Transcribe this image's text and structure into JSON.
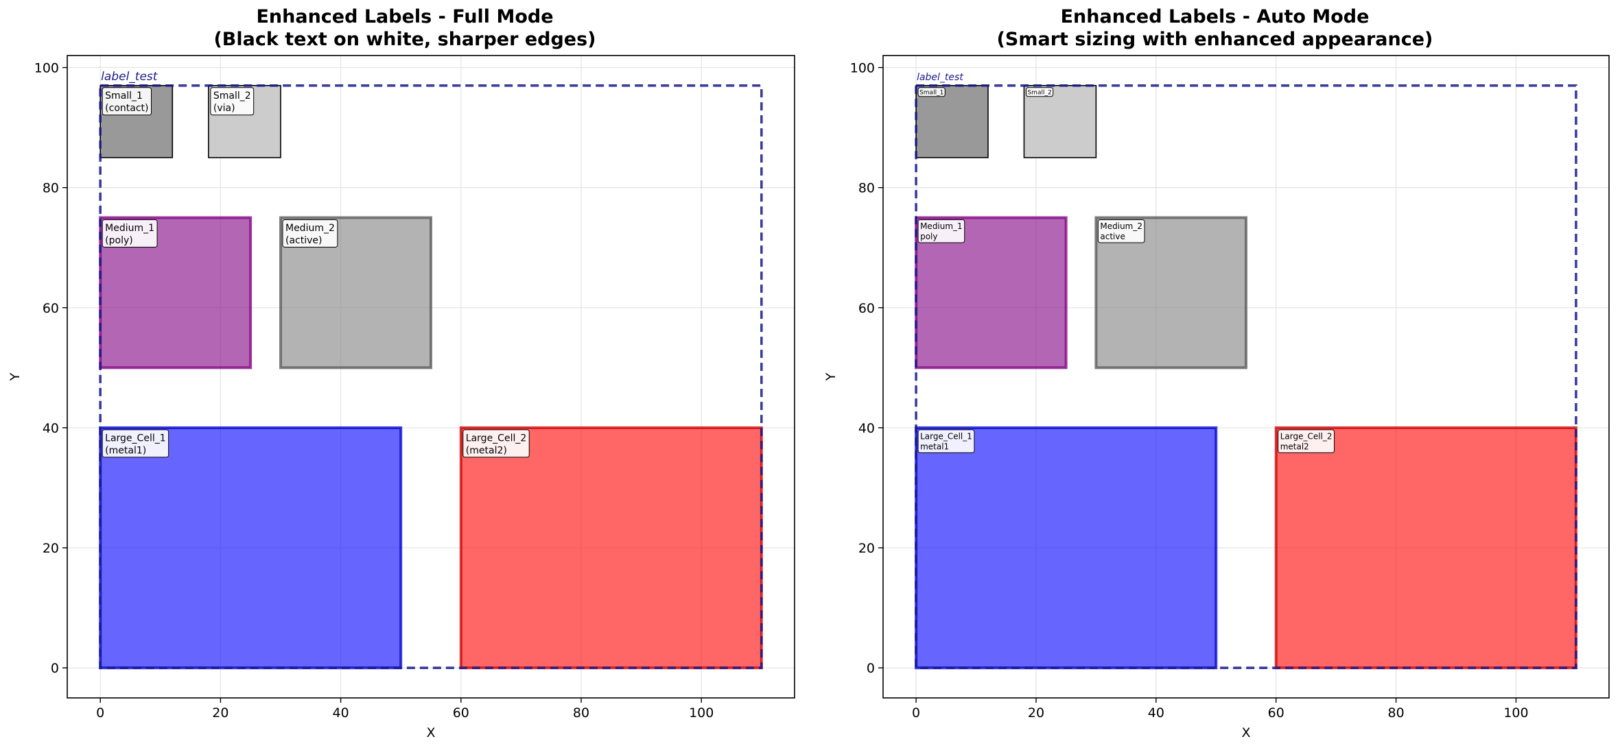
{
  "chart_data": [
    {
      "type": "layout",
      "title_line1": "Enhanced Labels - Full Mode",
      "title_line2": "(Black text on white, sharper edges)",
      "xlabel": "X",
      "ylabel": "Y",
      "xlim": [
        -5.5,
        115.5
      ],
      "ylim": [
        -5,
        102
      ],
      "xticks": [
        0,
        20,
        40,
        60,
        80,
        100
      ],
      "yticks": [
        0,
        20,
        40,
        60,
        80,
        100
      ],
      "grid": true,
      "label_mode": "full",
      "boundary": {
        "name": "label_test",
        "x": 0,
        "y": 0,
        "w": 110,
        "h": 97,
        "color": "#1a1a8c"
      },
      "cells": [
        {
          "name": "Small_1",
          "layer": "contact",
          "label": "Small_1\n(contact)",
          "x": 0,
          "y": 85,
          "w": 12,
          "h": 12,
          "fill": "#999999",
          "edge": "#000000",
          "fill_opacity": 1,
          "edge_width": "thin"
        },
        {
          "name": "Small_2",
          "layer": "via",
          "label": "Small_2\n(via)",
          "x": 18,
          "y": 85,
          "w": 12,
          "h": 12,
          "fill": "#cccccc",
          "edge": "#000000",
          "fill_opacity": 1,
          "edge_width": "thin"
        },
        {
          "name": "Medium_1",
          "layer": "poly",
          "label": "Medium_1\n(poly)",
          "x": 0,
          "y": 50,
          "w": 25,
          "h": 25,
          "fill": "#800080",
          "edge": "#800080",
          "fill_opacity": 0.6,
          "edge_width": "thick"
        },
        {
          "name": "Medium_2",
          "layer": "active",
          "label": "Medium_2\n(active)",
          "x": 30,
          "y": 50,
          "w": 25,
          "h": 25,
          "fill": "#808080",
          "edge": "#555555",
          "fill_opacity": 0.6,
          "edge_width": "thick"
        },
        {
          "name": "Large_Cell_1",
          "layer": "metal1",
          "label": "Large_Cell_1\n(metal1)",
          "x": 0,
          "y": 0,
          "w": 50,
          "h": 40,
          "fill": "#0000ff",
          "edge": "#0000cc",
          "fill_opacity": 0.6,
          "edge_width": "thick"
        },
        {
          "name": "Large_Cell_2",
          "layer": "metal2",
          "label": "Large_Cell_2\n(metal2)",
          "x": 60,
          "y": 0,
          "w": 50,
          "h": 40,
          "fill": "#ff0000",
          "edge": "#cc0000",
          "fill_opacity": 0.6,
          "edge_width": "thick"
        }
      ]
    },
    {
      "type": "layout",
      "title_line1": "Enhanced Labels - Auto Mode",
      "title_line2": "(Smart sizing with enhanced appearance)",
      "xlabel": "X",
      "ylabel": "Y",
      "xlim": [
        -5.5,
        115.5
      ],
      "ylim": [
        -5,
        102
      ],
      "xticks": [
        0,
        20,
        40,
        60,
        80,
        100
      ],
      "yticks": [
        0,
        20,
        40,
        60,
        80,
        100
      ],
      "grid": true,
      "label_mode": "auto",
      "boundary": {
        "name": "label_test",
        "x": 0,
        "y": 0,
        "w": 110,
        "h": 97,
        "color": "#1a1a8c"
      },
      "cells": [
        {
          "name": "Small_1",
          "label": "Small_1",
          "x": 0,
          "y": 85,
          "w": 12,
          "h": 12,
          "fill": "#999999",
          "edge": "#000000",
          "fill_opacity": 1,
          "edge_width": "thin",
          "label_size": "tiny"
        },
        {
          "name": "Small_2",
          "label": "Small_2",
          "x": 18,
          "y": 85,
          "w": 12,
          "h": 12,
          "fill": "#cccccc",
          "edge": "#000000",
          "fill_opacity": 1,
          "edge_width": "thin",
          "label_size": "tiny"
        },
        {
          "name": "Medium_1",
          "label": "Medium_1\npoly",
          "x": 0,
          "y": 50,
          "w": 25,
          "h": 25,
          "fill": "#800080",
          "edge": "#800080",
          "fill_opacity": 0.6,
          "edge_width": "thick",
          "label_size": "small"
        },
        {
          "name": "Medium_2",
          "label": "Medium_2\nactive",
          "x": 30,
          "y": 50,
          "w": 25,
          "h": 25,
          "fill": "#808080",
          "edge": "#555555",
          "fill_opacity": 0.6,
          "edge_width": "thick",
          "label_size": "small"
        },
        {
          "name": "Large_Cell_1",
          "label": "Large_Cell_1\nmetal1",
          "x": 0,
          "y": 0,
          "w": 50,
          "h": 40,
          "fill": "#0000ff",
          "edge": "#0000cc",
          "fill_opacity": 0.6,
          "edge_width": "thick",
          "label_size": "small"
        },
        {
          "name": "Large_Cell_2",
          "label": "Large_Cell_2\nmetal2",
          "x": 60,
          "y": 0,
          "w": 50,
          "h": 40,
          "fill": "#ff0000",
          "edge": "#cc0000",
          "fill_opacity": 0.6,
          "edge_width": "thick",
          "label_size": "small"
        }
      ]
    }
  ]
}
